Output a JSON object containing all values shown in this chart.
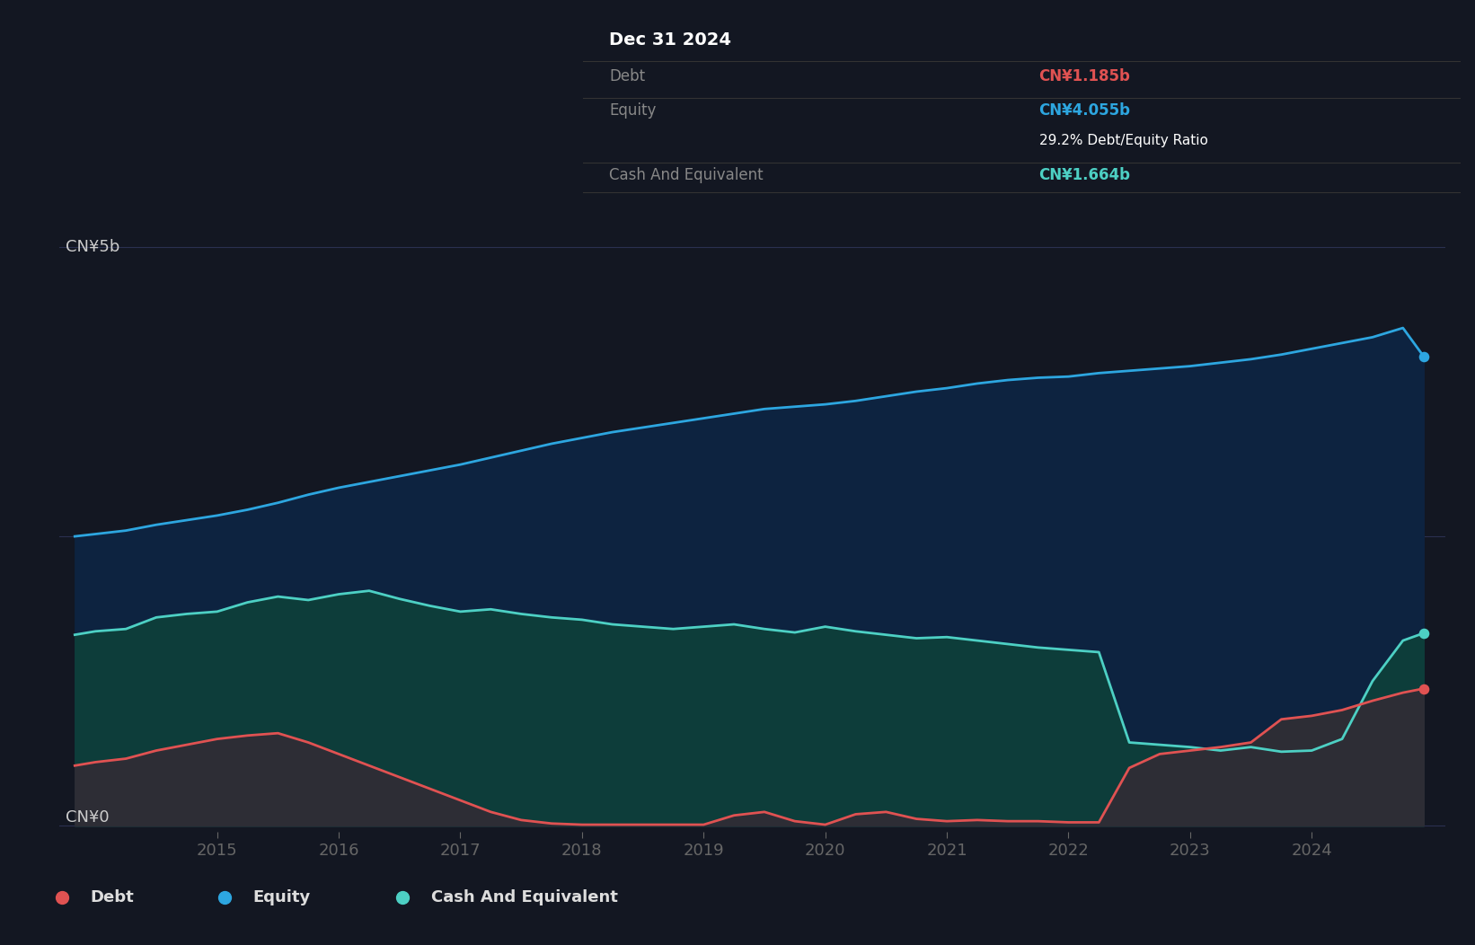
{
  "bg_color": "#131722",
  "plot_bg_color": "#131722",
  "grid_color": "#2a3459",
  "line_colors": {
    "debt": "#e05252",
    "equity": "#2da6e0",
    "cash": "#4dd0c4"
  },
  "legend": [
    {
      "label": "Debt",
      "color": "#e05252"
    },
    {
      "label": "Equity",
      "color": "#2da6e0"
    },
    {
      "label": "Cash And Equivalent",
      "color": "#4dd0c4"
    }
  ],
  "tooltip": {
    "date": "Dec 31 2024",
    "debt_label": "Debt",
    "debt_value": "CN¥1.185b",
    "debt_color": "#e05252",
    "equity_label": "Equity",
    "equity_value": "CN¥4.055b",
    "equity_color": "#2da6e0",
    "ratio_text": "29.2% Debt/Equity Ratio",
    "cash_label": "Cash And Equivalent",
    "cash_value": "CN¥1.664b",
    "cash_color": "#4dd0c4"
  },
  "equity_dates": [
    2013.83,
    2014.0,
    2014.25,
    2014.5,
    2014.75,
    2015.0,
    2015.25,
    2015.5,
    2015.75,
    2016.0,
    2016.25,
    2016.5,
    2016.75,
    2017.0,
    2017.25,
    2017.5,
    2017.75,
    2018.0,
    2018.25,
    2018.5,
    2018.75,
    2019.0,
    2019.25,
    2019.5,
    2019.75,
    2020.0,
    2020.25,
    2020.5,
    2020.75,
    2021.0,
    2021.25,
    2021.5,
    2021.75,
    2022.0,
    2022.25,
    2022.5,
    2022.75,
    2023.0,
    2023.25,
    2023.5,
    2023.75,
    2024.0,
    2024.25,
    2024.5,
    2024.75,
    2024.92
  ],
  "equity_values": [
    2.5,
    2.52,
    2.55,
    2.6,
    2.64,
    2.68,
    2.73,
    2.79,
    2.86,
    2.92,
    2.97,
    3.02,
    3.07,
    3.12,
    3.18,
    3.24,
    3.3,
    3.35,
    3.4,
    3.44,
    3.48,
    3.52,
    3.56,
    3.6,
    3.62,
    3.64,
    3.67,
    3.71,
    3.75,
    3.78,
    3.82,
    3.85,
    3.87,
    3.88,
    3.91,
    3.93,
    3.95,
    3.97,
    4.0,
    4.03,
    4.07,
    4.12,
    4.17,
    4.22,
    4.3,
    4.055
  ],
  "cash_dates": [
    2013.83,
    2014.0,
    2014.25,
    2014.5,
    2014.75,
    2015.0,
    2015.25,
    2015.5,
    2015.75,
    2016.0,
    2016.25,
    2016.5,
    2016.75,
    2017.0,
    2017.25,
    2017.5,
    2017.75,
    2018.0,
    2018.25,
    2018.5,
    2018.75,
    2019.0,
    2019.25,
    2019.5,
    2019.75,
    2020.0,
    2020.25,
    2020.5,
    2020.75,
    2021.0,
    2021.25,
    2021.5,
    2021.75,
    2022.0,
    2022.25,
    2022.5,
    2022.75,
    2023.0,
    2023.25,
    2023.5,
    2023.75,
    2024.0,
    2024.25,
    2024.5,
    2024.75,
    2024.92
  ],
  "cash_values": [
    1.65,
    1.68,
    1.7,
    1.8,
    1.83,
    1.85,
    1.93,
    1.98,
    1.95,
    2.0,
    2.03,
    1.96,
    1.9,
    1.85,
    1.87,
    1.83,
    1.8,
    1.78,
    1.74,
    1.72,
    1.7,
    1.72,
    1.74,
    1.7,
    1.67,
    1.72,
    1.68,
    1.65,
    1.62,
    1.63,
    1.6,
    1.57,
    1.54,
    1.52,
    1.5,
    0.72,
    0.7,
    0.68,
    0.65,
    0.68,
    0.64,
    0.65,
    0.75,
    1.25,
    1.6,
    1.664
  ],
  "debt_dates": [
    2013.83,
    2014.0,
    2014.25,
    2014.5,
    2014.75,
    2015.0,
    2015.25,
    2015.5,
    2015.75,
    2016.0,
    2016.25,
    2016.5,
    2016.75,
    2017.0,
    2017.25,
    2017.5,
    2017.75,
    2018.0,
    2018.25,
    2018.5,
    2018.75,
    2019.0,
    2019.25,
    2019.5,
    2019.75,
    2020.0,
    2020.25,
    2020.5,
    2020.75,
    2021.0,
    2021.25,
    2021.5,
    2021.75,
    2022.0,
    2022.25,
    2022.5,
    2022.75,
    2023.0,
    2023.25,
    2023.5,
    2023.75,
    2024.0,
    2024.25,
    2024.5,
    2024.75,
    2024.92
  ],
  "debt_values": [
    0.52,
    0.55,
    0.58,
    0.65,
    0.7,
    0.75,
    0.78,
    0.8,
    0.72,
    0.62,
    0.52,
    0.42,
    0.32,
    0.22,
    0.12,
    0.05,
    0.02,
    0.01,
    0.01,
    0.01,
    0.01,
    0.01,
    0.09,
    0.12,
    0.04,
    0.01,
    0.1,
    0.12,
    0.06,
    0.04,
    0.05,
    0.04,
    0.04,
    0.03,
    0.03,
    0.5,
    0.62,
    0.65,
    0.68,
    0.72,
    0.92,
    0.95,
    1.0,
    1.08,
    1.15,
    1.185
  ]
}
